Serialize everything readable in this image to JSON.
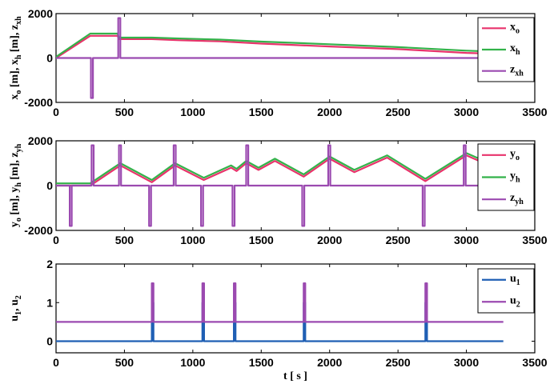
{
  "chart_data": [
    {
      "type": "line",
      "xlim": [
        0,
        3500
      ],
      "ylim": [
        -2000,
        2000
      ],
      "x_ticks": [
        "0",
        "500",
        "1000",
        "1500",
        "2000",
        "2500",
        "3000",
        "3500"
      ],
      "y_ticks": [
        "-2000",
        "0",
        "2000"
      ],
      "ylabel_parts": [
        {
          "text": "x",
          "sub": "o"
        },
        {
          "text": " [m], x",
          "sub": "h"
        },
        {
          "text": " [m], z",
          "sub": "xh"
        }
      ],
      "legend_position": "top-right",
      "series": [
        {
          "name": "x",
          "sub": "o",
          "color": "#e8336b",
          "points": [
            [
              0,
              0
            ],
            [
              250,
              1000
            ],
            [
              450,
              1000
            ],
            [
              460,
              850
            ],
            [
              700,
              850
            ],
            [
              900,
              800
            ],
            [
              1200,
              750
            ],
            [
              1500,
              650
            ],
            [
              2000,
              520
            ],
            [
              2500,
              400
            ],
            [
              3000,
              230
            ],
            [
              3150,
              200
            ]
          ]
        },
        {
          "name": "x",
          "sub": "h",
          "color": "#33b24a",
          "points": [
            [
              0,
              50
            ],
            [
              250,
              1100
            ],
            [
              450,
              1100
            ],
            [
              460,
              920
            ],
            [
              700,
              920
            ],
            [
              900,
              880
            ],
            [
              1200,
              830
            ],
            [
              1500,
              740
            ],
            [
              2000,
              620
            ],
            [
              2500,
              490
            ],
            [
              3000,
              330
            ],
            [
              3150,
              300
            ]
          ]
        },
        {
          "name": "z",
          "sub": "xh",
          "color": "#9b4ab0",
          "points": [
            [
              0,
              0
            ],
            [
              255,
              0
            ],
            [
              255,
              -1800
            ],
            [
              270,
              -1800
            ],
            [
              270,
              0
            ],
            [
              455,
              0
            ],
            [
              455,
              1800
            ],
            [
              470,
              1800
            ],
            [
              470,
              0
            ],
            [
              3150,
              0
            ]
          ]
        }
      ]
    },
    {
      "type": "line",
      "xlim": [
        0,
        3500
      ],
      "ylim": [
        -2000,
        2000
      ],
      "x_ticks": [
        "0",
        "500",
        "1000",
        "1500",
        "2000",
        "2500",
        "3000",
        "3500"
      ],
      "y_ticks": [
        "-2000",
        "0",
        "2000"
      ],
      "ylabel_parts": [
        {
          "text": "y",
          "sub": "o"
        },
        {
          "text": " [m], y",
          "sub": "h"
        },
        {
          "text": " [m], z",
          "sub": "yh"
        }
      ],
      "legend_position": "top-right",
      "series": [
        {
          "name": "y",
          "sub": "o",
          "color": "#e8336b",
          "points": [
            [
              0,
              0
            ],
            [
              250,
              0
            ],
            [
              470,
              900
            ],
            [
              700,
              150
            ],
            [
              870,
              900
            ],
            [
              1080,
              250
            ],
            [
              1280,
              800
            ],
            [
              1320,
              650
            ],
            [
              1390,
              1000
            ],
            [
              1480,
              700
            ],
            [
              1600,
              1100
            ],
            [
              1810,
              400
            ],
            [
              2000,
              1200
            ],
            [
              2180,
              600
            ],
            [
              2420,
              1250
            ],
            [
              2700,
              200
            ],
            [
              3000,
              1350
            ],
            [
              3150,
              950
            ]
          ]
        },
        {
          "name": "y",
          "sub": "h",
          "color": "#33b24a",
          "points": [
            [
              0,
              100
            ],
            [
              250,
              100
            ],
            [
              470,
              1000
            ],
            [
              700,
              250
            ],
            [
              870,
              1000
            ],
            [
              1080,
              350
            ],
            [
              1280,
              900
            ],
            [
              1320,
              750
            ],
            [
              1390,
              1100
            ],
            [
              1480,
              800
            ],
            [
              1600,
              1200
            ],
            [
              1810,
              500
            ],
            [
              2000,
              1300
            ],
            [
              2180,
              700
            ],
            [
              2420,
              1350
            ],
            [
              2700,
              300
            ],
            [
              3000,
              1450
            ],
            [
              3150,
              1050
            ]
          ]
        },
        {
          "name": "z",
          "sub": "yh",
          "color": "#9b4ab0",
          "points": [
            [
              0,
              0
            ],
            [
              100,
              0
            ],
            [
              100,
              -1800
            ],
            [
              115,
              -1800
            ],
            [
              115,
              0
            ],
            [
              260,
              0
            ],
            [
              260,
              1800
            ],
            [
              275,
              1800
            ],
            [
              275,
              0
            ],
            [
              460,
              0
            ],
            [
              460,
              1800
            ],
            [
              475,
              1800
            ],
            [
              475,
              0
            ],
            [
              680,
              0
            ],
            [
              680,
              -1800
            ],
            [
              695,
              -1800
            ],
            [
              695,
              0
            ],
            [
              860,
              0
            ],
            [
              860,
              1800
            ],
            [
              875,
              1800
            ],
            [
              875,
              0
            ],
            [
              1060,
              0
            ],
            [
              1060,
              -1800
            ],
            [
              1075,
              -1800
            ],
            [
              1075,
              0
            ],
            [
              1290,
              0
            ],
            [
              1290,
              -1800
            ],
            [
              1305,
              -1800
            ],
            [
              1305,
              0
            ],
            [
              1390,
              0
            ],
            [
              1390,
              1800
            ],
            [
              1405,
              1800
            ],
            [
              1405,
              0
            ],
            [
              1800,
              0
            ],
            [
              1800,
              -1800
            ],
            [
              1815,
              -1800
            ],
            [
              1815,
              0
            ],
            [
              1990,
              0
            ],
            [
              1990,
              1800
            ],
            [
              2005,
              1800
            ],
            [
              2005,
              0
            ],
            [
              2680,
              0
            ],
            [
              2680,
              -1800
            ],
            [
              2695,
              -1800
            ],
            [
              2695,
              0
            ],
            [
              2980,
              0
            ],
            [
              2980,
              1800
            ],
            [
              2995,
              1800
            ],
            [
              2995,
              0
            ],
            [
              3150,
              0
            ]
          ]
        }
      ]
    },
    {
      "type": "line",
      "xlim": [
        0,
        3500
      ],
      "ylim": [
        -0.3,
        2
      ],
      "x_ticks": [
        "0",
        "500",
        "1000",
        "1500",
        "2000",
        "2500",
        "3000",
        "3500"
      ],
      "y_ticks": [
        "0",
        "1",
        "2"
      ],
      "xlabel": "t [ s ]",
      "ylabel_parts": [
        {
          "text": "u",
          "sub": "1"
        },
        {
          "text": ", u",
          "sub": "2"
        }
      ],
      "legend_position": "top-right",
      "series": [
        {
          "name": "u",
          "sub": "1",
          "color": "#1f5fb4",
          "points": [
            [
              0,
              0
            ],
            [
              700,
              0
            ],
            [
              700,
              1
            ],
            [
              712,
              1
            ],
            [
              712,
              0
            ],
            [
              1070,
              0
            ],
            [
              1070,
              1
            ],
            [
              1082,
              1
            ],
            [
              1082,
              0
            ],
            [
              1300,
              0
            ],
            [
              1300,
              1
            ],
            [
              1312,
              1
            ],
            [
              1312,
              0
            ],
            [
              1810,
              0
            ],
            [
              1810,
              1
            ],
            [
              1822,
              1
            ],
            [
              1822,
              0
            ],
            [
              2700,
              0
            ],
            [
              2700,
              1
            ],
            [
              2712,
              1
            ],
            [
              2712,
              0
            ],
            [
              3270,
              0
            ]
          ]
        },
        {
          "name": "u",
          "sub": "2",
          "color": "#9b4ab0",
          "points": [
            [
              0,
              0.5
            ],
            [
              700,
              0.5
            ],
            [
              700,
              1.5
            ],
            [
              712,
              1.5
            ],
            [
              712,
              0.5
            ],
            [
              1070,
              0.5
            ],
            [
              1070,
              1.5
            ],
            [
              1082,
              1.5
            ],
            [
              1082,
              0.5
            ],
            [
              1300,
              0.5
            ],
            [
              1300,
              1.5
            ],
            [
              1312,
              1.5
            ],
            [
              1312,
              0.5
            ],
            [
              1810,
              0.5
            ],
            [
              1810,
              1.5
            ],
            [
              1822,
              1.5
            ],
            [
              1822,
              0.5
            ],
            [
              2700,
              0.5
            ],
            [
              2700,
              1.5
            ],
            [
              2712,
              1.5
            ],
            [
              2712,
              0.5
            ],
            [
              3270,
              0.5
            ]
          ]
        }
      ]
    }
  ]
}
